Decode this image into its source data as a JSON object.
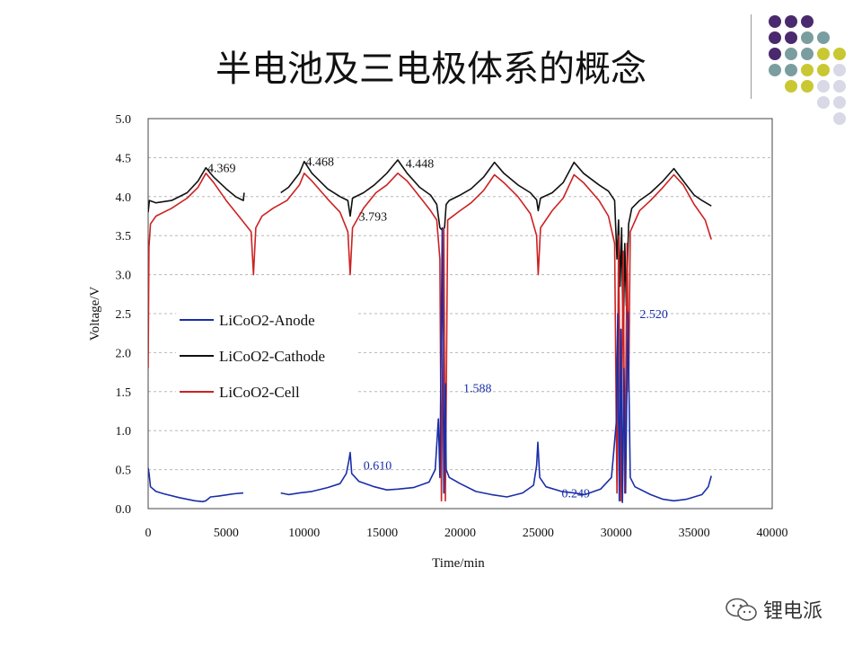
{
  "slide": {
    "title": "半电池及三电极体系的概念",
    "watermark": "锂电派",
    "dot_colors": [
      "#4a2a6e",
      "#7a9e9f",
      "#c9c832",
      "#d8d8e6"
    ]
  },
  "chart_data": {
    "type": "line",
    "xlabel": "Time/min",
    "ylabel": "Voltage/V",
    "xlim": [
      0,
      40000
    ],
    "ylim": [
      0,
      5
    ],
    "xticks": [
      0,
      5000,
      10000,
      15000,
      20000,
      25000,
      30000,
      35000,
      40000
    ],
    "yticks": [
      "0.0",
      "0.5",
      "1.0",
      "1.5",
      "2.0",
      "2.5",
      "3.0",
      "3.5",
      "4.0",
      "4.5",
      "5.0"
    ],
    "grid": "horizontal dashed",
    "legend": "left-center",
    "series": [
      {
        "name": "LiCoO2-Cathode",
        "color": "#111111",
        "segments": [
          [
            [
              0,
              3.8
            ],
            [
              80,
              3.95
            ],
            [
              500,
              3.92
            ],
            [
              1500,
              3.95
            ],
            [
              2500,
              4.05
            ],
            [
              3200,
              4.2
            ],
            [
              3700,
              4.37
            ],
            [
              4200,
              4.25
            ],
            [
              5000,
              4.1
            ],
            [
              5600,
              4.0
            ],
            [
              6100,
              3.95
            ],
            [
              6150,
              4.05
            ]
          ],
          [
            [
              8500,
              4.05
            ],
            [
              9000,
              4.12
            ],
            [
              9700,
              4.3
            ],
            [
              10000,
              4.45
            ],
            [
              10500,
              4.3
            ],
            [
              11500,
              4.1
            ],
            [
              12300,
              4.0
            ],
            [
              12800,
              3.95
            ],
            [
              12950,
              3.75
            ],
            [
              13100,
              3.98
            ],
            [
              13800,
              4.05
            ],
            [
              14500,
              4.15
            ],
            [
              15300,
              4.3
            ],
            [
              16000,
              4.47
            ],
            [
              16600,
              4.3
            ],
            [
              17400,
              4.12
            ],
            [
              18100,
              4.02
            ],
            [
              18500,
              3.9
            ],
            [
              18700,
              3.6
            ],
            [
              18800,
              3.58
            ],
            [
              19000,
              3.6
            ],
            [
              19100,
              3.9
            ],
            [
              19300,
              3.95
            ],
            [
              20000,
              4.02
            ],
            [
              20700,
              4.1
            ],
            [
              21500,
              4.25
            ],
            [
              22200,
              4.44
            ],
            [
              22800,
              4.3
            ],
            [
              23700,
              4.15
            ],
            [
              24500,
              4.05
            ],
            [
              24900,
              3.96
            ],
            [
              25000,
              3.82
            ],
            [
              25150,
              3.98
            ],
            [
              25900,
              4.05
            ],
            [
              26600,
              4.18
            ],
            [
              27300,
              4.44
            ],
            [
              27900,
              4.3
            ],
            [
              28900,
              4.15
            ],
            [
              29500,
              4.07
            ],
            [
              29900,
              3.95
            ],
            [
              30050,
              3.2
            ],
            [
              30150,
              3.7
            ],
            [
              30250,
              2.85
            ],
            [
              30350,
              3.6
            ],
            [
              30450,
              2.1
            ],
            [
              30550,
              3.4
            ],
            [
              30650,
              2.6
            ],
            [
              30800,
              3.65
            ],
            [
              31000,
              3.85
            ],
            [
              31500,
              3.95
            ],
            [
              32200,
              4.05
            ],
            [
              33000,
              4.2
            ],
            [
              33700,
              4.36
            ],
            [
              34300,
              4.2
            ],
            [
              35000,
              4.02
            ],
            [
              35500,
              3.95
            ],
            [
              36100,
              3.88
            ]
          ]
        ]
      },
      {
        "name": "LiCoO2-Cell",
        "color": "#cc2222",
        "segments": [
          [
            [
              0,
              1.8
            ],
            [
              50,
              3.35
            ],
            [
              150,
              3.65
            ],
            [
              500,
              3.75
            ],
            [
              1500,
              3.85
            ],
            [
              2500,
              3.98
            ],
            [
              3200,
              4.12
            ],
            [
              3700,
              4.3
            ],
            [
              4200,
              4.18
            ],
            [
              5000,
              3.95
            ],
            [
              6000,
              3.7
            ],
            [
              6600,
              3.55
            ],
            [
              6750,
              3.0
            ],
            [
              6900,
              3.6
            ],
            [
              7300,
              3.75
            ],
            [
              8000,
              3.85
            ],
            [
              8900,
              3.95
            ],
            [
              9700,
              4.15
            ],
            [
              10000,
              4.3
            ],
            [
              10500,
              4.2
            ],
            [
              11500,
              3.97
            ],
            [
              12300,
              3.8
            ],
            [
              12800,
              3.55
            ],
            [
              12950,
              3.0
            ],
            [
              13100,
              3.6
            ],
            [
              13800,
              3.85
            ],
            [
              14600,
              4.05
            ],
            [
              15300,
              4.15
            ],
            [
              16000,
              4.3
            ],
            [
              16600,
              4.2
            ],
            [
              17400,
              4.0
            ],
            [
              18100,
              3.82
            ],
            [
              18500,
              3.7
            ],
            [
              18700,
              3.2
            ],
            [
              18800,
              0.1
            ],
            [
              18950,
              3.6
            ],
            [
              19050,
              0.1
            ],
            [
              19200,
              3.7
            ],
            [
              20000,
              3.82
            ],
            [
              20700,
              3.92
            ],
            [
              21500,
              4.08
            ],
            [
              22200,
              4.28
            ],
            [
              22800,
              4.18
            ],
            [
              23700,
              4.0
            ],
            [
              24500,
              3.78
            ],
            [
              24900,
              3.5
            ],
            [
              25000,
              3.0
            ],
            [
              25150,
              3.6
            ],
            [
              25900,
              3.82
            ],
            [
              26600,
              3.98
            ],
            [
              27300,
              4.28
            ],
            [
              27900,
              4.18
            ],
            [
              28900,
              3.95
            ],
            [
              29500,
              3.75
            ],
            [
              29900,
              3.4
            ],
            [
              30050,
              0.2
            ],
            [
              30150,
              3.5
            ],
            [
              30300,
              0.1
            ],
            [
              30450,
              3.3
            ],
            [
              30550,
              0.2
            ],
            [
              30700,
              3.4
            ],
            [
              30800,
              1.5
            ],
            [
              30900,
              3.55
            ],
            [
              31500,
              3.82
            ],
            [
              32200,
              3.95
            ],
            [
              33000,
              4.12
            ],
            [
              33700,
              4.28
            ],
            [
              34300,
              4.15
            ],
            [
              35000,
              3.9
            ],
            [
              35700,
              3.7
            ],
            [
              36100,
              3.45
            ]
          ]
        ]
      },
      {
        "name": "LiCoO2-Anode",
        "color": "#1a2ea8",
        "segments": [
          [
            [
              0,
              0.52
            ],
            [
              60,
              0.45
            ],
            [
              150,
              0.28
            ],
            [
              500,
              0.22
            ],
            [
              1000,
              0.19
            ],
            [
              2000,
              0.14
            ],
            [
              3000,
              0.1
            ],
            [
              3500,
              0.09
            ],
            [
              3700,
              0.1
            ],
            [
              4000,
              0.15
            ],
            [
              4500,
              0.16
            ],
            [
              5500,
              0.19
            ],
            [
              6100,
              0.2
            ]
          ],
          [
            [
              8500,
              0.2
            ],
            [
              9000,
              0.18
            ],
            [
              9700,
              0.2
            ],
            [
              10500,
              0.22
            ],
            [
              11500,
              0.27
            ],
            [
              12300,
              0.32
            ],
            [
              12700,
              0.45
            ],
            [
              12850,
              0.6
            ],
            [
              12950,
              0.72
            ],
            [
              13050,
              0.45
            ],
            [
              13500,
              0.35
            ],
            [
              14500,
              0.28
            ],
            [
              15300,
              0.24
            ],
            [
              16000,
              0.25
            ],
            [
              17000,
              0.27
            ],
            [
              18000,
              0.34
            ],
            [
              18400,
              0.5
            ],
            [
              18600,
              1.15
            ],
            [
              18700,
              0.4
            ],
            [
              18850,
              3.6
            ],
            [
              18950,
              0.2
            ],
            [
              19050,
              1.6
            ],
            [
              19100,
              0.5
            ],
            [
              19300,
              0.4
            ],
            [
              20000,
              0.32
            ],
            [
              21000,
              0.22
            ],
            [
              22000,
              0.18
            ],
            [
              23000,
              0.15
            ],
            [
              24000,
              0.2
            ],
            [
              24700,
              0.3
            ],
            [
              24900,
              0.55
            ],
            [
              24980,
              0.85
            ],
            [
              25100,
              0.4
            ],
            [
              25500,
              0.28
            ],
            [
              26500,
              0.22
            ],
            [
              27300,
              0.2
            ],
            [
              28000,
              0.18
            ],
            [
              29000,
              0.25
            ],
            [
              29700,
              0.4
            ],
            [
              30000,
              1.1
            ],
            [
              30100,
              2.5
            ],
            [
              30200,
              0.1
            ],
            [
              30300,
              2.3
            ],
            [
              30400,
              0.08
            ],
            [
              30500,
              1.8
            ],
            [
              30600,
              0.2
            ],
            [
              30750,
              2.52
            ],
            [
              30900,
              0.4
            ],
            [
              31200,
              0.28
            ],
            [
              32200,
              0.18
            ],
            [
              33000,
              0.12
            ],
            [
              33700,
              0.1
            ],
            [
              34500,
              0.12
            ],
            [
              35500,
              0.18
            ],
            [
              35900,
              0.28
            ],
            [
              36100,
              0.42
            ]
          ]
        ]
      }
    ],
    "annotations": [
      {
        "text": "4.369",
        "x": 3800,
        "y": 4.37,
        "color": "#111111"
      },
      {
        "text": "4.468",
        "x": 10100,
        "y": 4.45,
        "color": "#111111"
      },
      {
        "text": "4.448",
        "x": 16500,
        "y": 4.43,
        "color": "#111111"
      },
      {
        "text": "3.793",
        "x": 13500,
        "y": 3.75,
        "color": "#111111"
      },
      {
        "text": "0.610",
        "x": 13800,
        "y": 0.56,
        "color": "#1a2ea8"
      },
      {
        "text": "1.588",
        "x": 20200,
        "y": 1.55,
        "color": "#1a2ea8"
      },
      {
        "text": "0.249",
        "x": 26500,
        "y": 0.2,
        "color": "#1a2ea8"
      },
      {
        "text": "2.520",
        "x": 31500,
        "y": 2.5,
        "color": "#1a2ea8"
      }
    ]
  }
}
